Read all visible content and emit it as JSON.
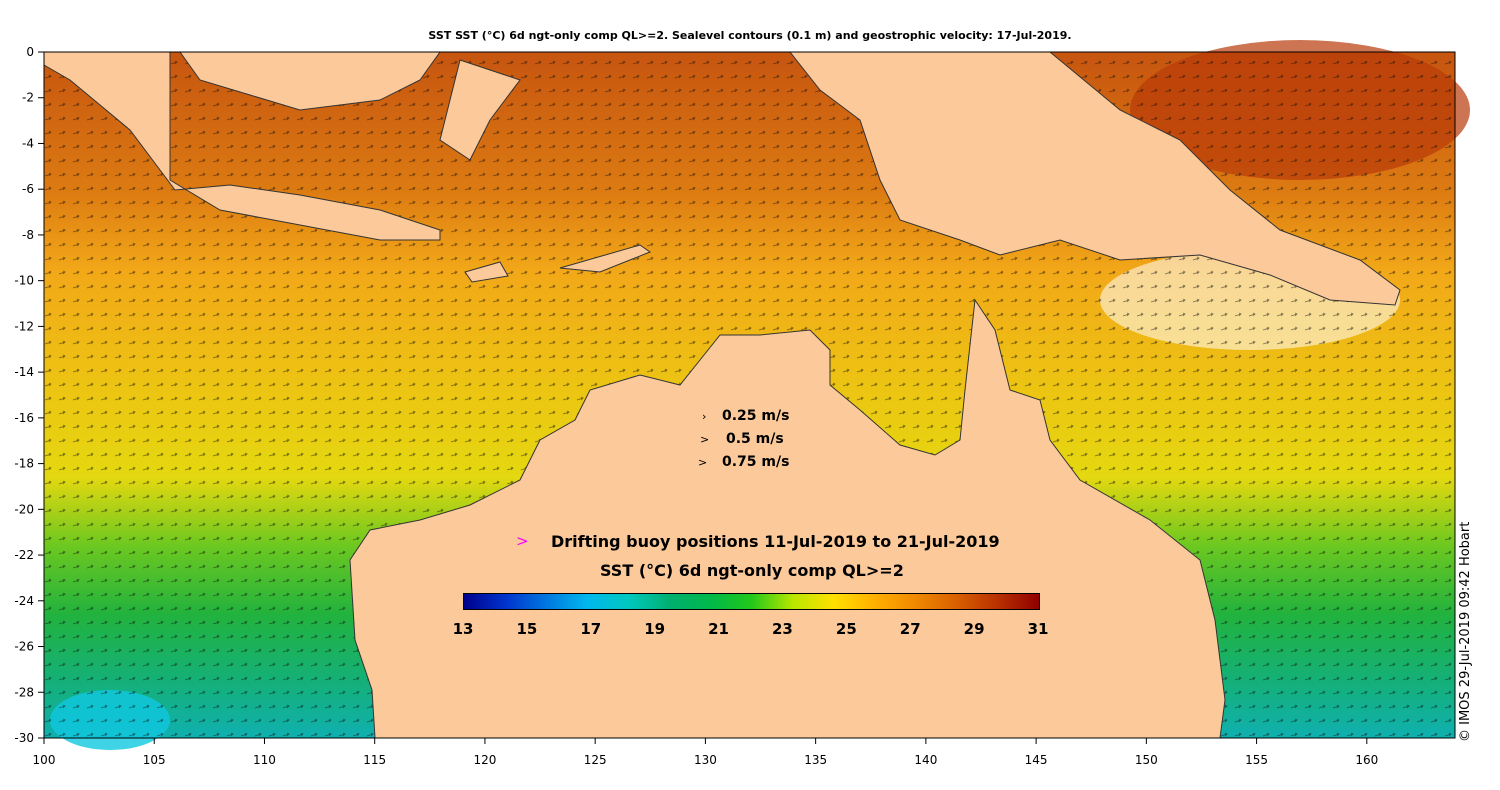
{
  "title": "SST SST (°C) 6d ngt-only comp QL>=2. Sealevel contours (0.1 m) and geostrophic velocity: 17-Jul-2019.",
  "credit": "© IMOS 29-Jul-2019 09:42 Hobart",
  "x_axis": {
    "ticks": [
      "100",
      "105",
      "110",
      "115",
      "120",
      "125",
      "130",
      "135",
      "140",
      "145",
      "150",
      "155",
      "160"
    ],
    "min": 100,
    "max": 164
  },
  "y_axis": {
    "ticks": [
      "0",
      "-2",
      "-4",
      "-6",
      "-8",
      "-10",
      "-12",
      "-14",
      "-16",
      "-18",
      "-20",
      "-22",
      "-24",
      "-26",
      "-28",
      "-30"
    ],
    "min": -30,
    "max": 0
  },
  "velocity_legend": [
    {
      "arrow": "›",
      "label": "0.25 m/s"
    },
    {
      "arrow": ">",
      "label": "0.5 m/s"
    },
    {
      "arrow": ">",
      "label": "0.75 m/s"
    }
  ],
  "buoy_legend": {
    "marker": ">",
    "text": "Drifting buoy positions 11-Jul-2019 to 21-Jul-2019",
    "color": "#ff00ff"
  },
  "colorbar": {
    "title": "SST (°C) 6d ngt-only comp QL>=2",
    "min": 13,
    "max": 31,
    "ticks": [
      "13",
      "15",
      "17",
      "19",
      "21",
      "23",
      "25",
      "27",
      "29",
      "31"
    ],
    "colors": [
      "#00008b",
      "#0033cc",
      "#0077e0",
      "#00b7ee",
      "#00c8c0",
      "#00b070",
      "#00b84a",
      "#22c81a",
      "#b8e600",
      "#ffe000",
      "#ffb000",
      "#f08800",
      "#d86000",
      "#b83000",
      "#900000"
    ]
  },
  "map_colors": {
    "land": "#fbc99a",
    "warm": "#cf5f10",
    "mid": "#f4a718",
    "yellow": "#eccf10",
    "green": "#28b23a",
    "cyan": "#10c0c8"
  }
}
